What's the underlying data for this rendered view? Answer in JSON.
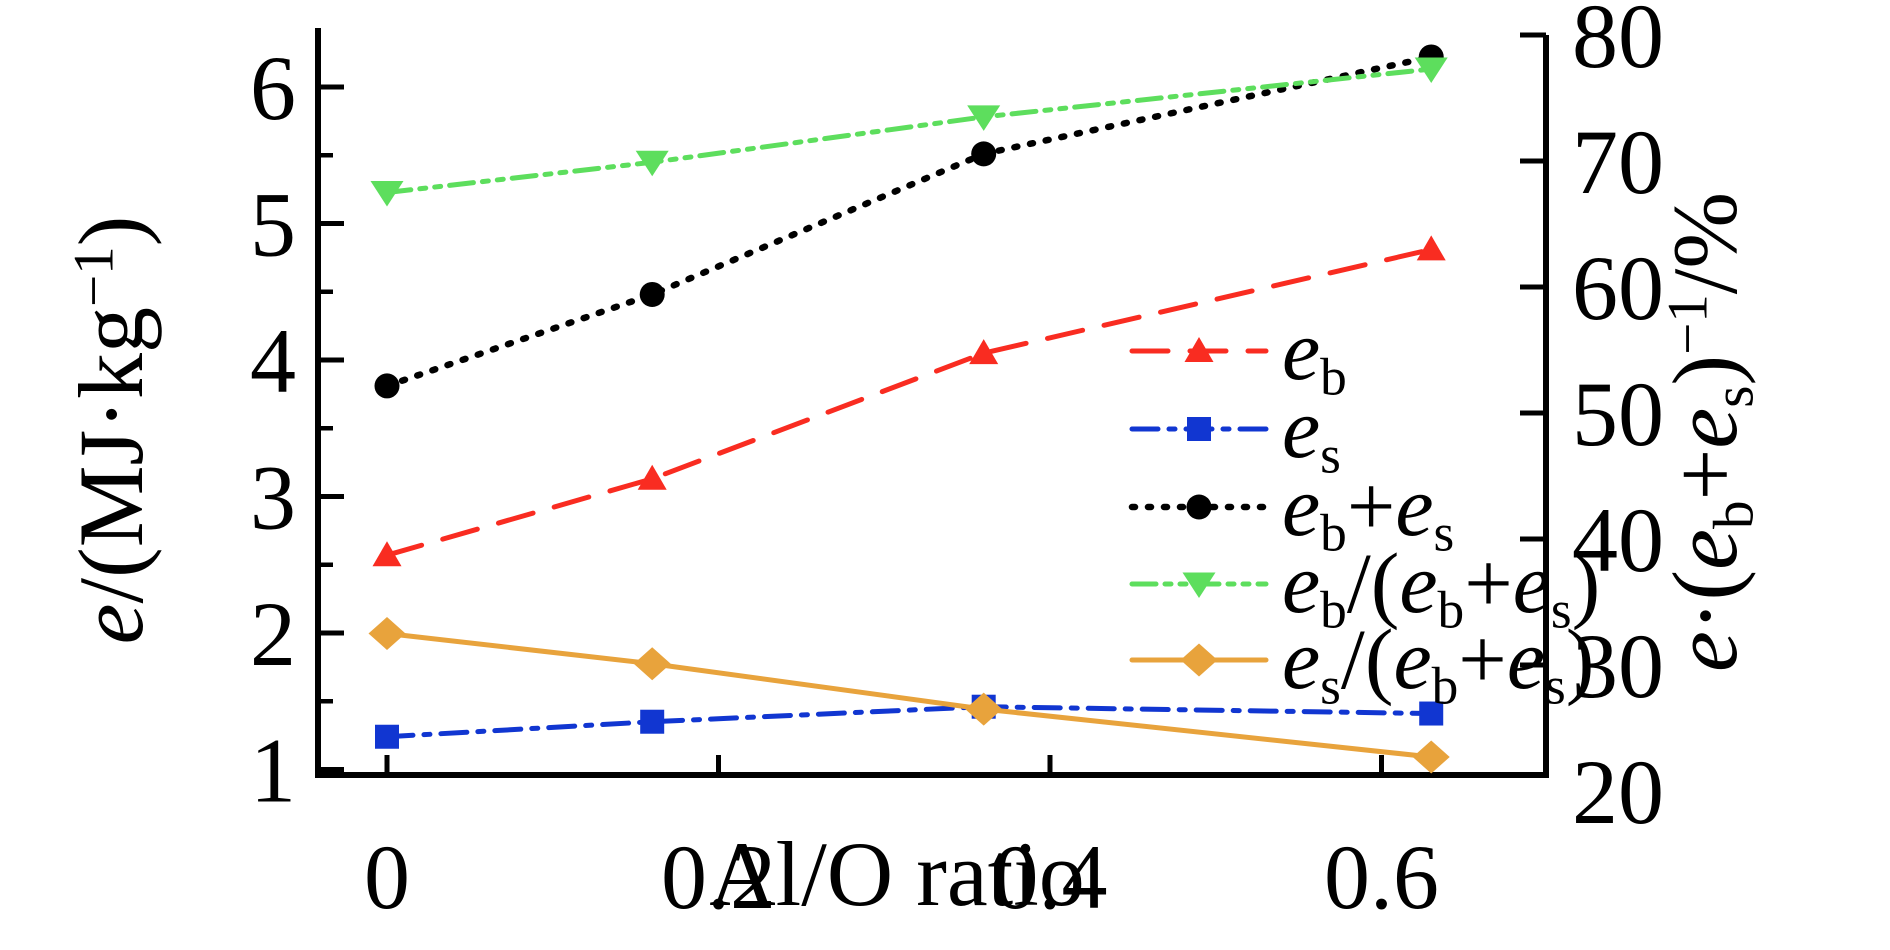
{
  "figure": {
    "background": "#ffffff",
    "description": "Line chart of burn and specific energies versus Al/O ratio with dual y axes"
  },
  "chart_data": {
    "type": "line",
    "x_axis": {
      "title": "Al/O ratio",
      "ticks": [
        0,
        0.2,
        0.4,
        0.6
      ],
      "tick_labels": [
        "0",
        "0.2",
        "0.4",
        "0.6"
      ],
      "range": [
        -0.042,
        0.7
      ],
      "grid": false
    },
    "left_axis": {
      "title": "e/(MJ·kg^{−1})",
      "ticks": [
        1,
        2,
        3,
        4,
        5,
        6
      ],
      "minor_ticks": [
        1.5,
        2.5,
        3.5,
        4.5,
        5.5
      ],
      "range": [
        0.96,
        6.44
      ]
    },
    "right_axis": {
      "title": "e·(e_{b}+e_{s})^{−1}/%",
      "ticks": [
        20,
        30,
        40,
        50,
        60,
        70,
        80
      ],
      "range": [
        20,
        80
      ]
    },
    "x": [
      0,
      0.16,
      0.36,
      0.63
    ],
    "series": [
      {
        "name": "e_{b}",
        "axis": "left",
        "color": "#f92c21",
        "marker": "triangle-up",
        "line": "dashed",
        "values": [
          2.57,
          3.13,
          4.05,
          4.81
        ]
      },
      {
        "name": "e_{s}",
        "axis": "left",
        "color": "#1136d1",
        "marker": "square",
        "line": "dashdot",
        "values": [
          1.24,
          1.35,
          1.46,
          1.41
        ]
      },
      {
        "name": "e_{b}+e_{s}",
        "axis": "left",
        "color": "#000000",
        "marker": "circle",
        "line": "dotted",
        "values": [
          3.81,
          4.48,
          5.51,
          6.22
        ]
      },
      {
        "name": "e_{b}/(e_{b}+e_{s})",
        "axis": "right",
        "color": "#5dde5d",
        "marker": "triangle-down",
        "line": "dashdotdot",
        "values": [
          67.5,
          69.9,
          73.5,
          77.3
        ]
      },
      {
        "name": "e_{s}/(e_{b}+e_{s})",
        "axis": "right",
        "color": "#e8a33c",
        "marker": "diamond",
        "line": "solid",
        "values": [
          32.5,
          30.1,
          26.5,
          22.7
        ]
      }
    ],
    "legend": {
      "position": "center-right",
      "entries": [
        "e_{b}",
        "e_{s}",
        "e_{b}+e_{s}",
        "e_{b}/(e_{b}+e_{s})",
        "e_{s}/(e_{b}+e_{s})"
      ]
    }
  }
}
